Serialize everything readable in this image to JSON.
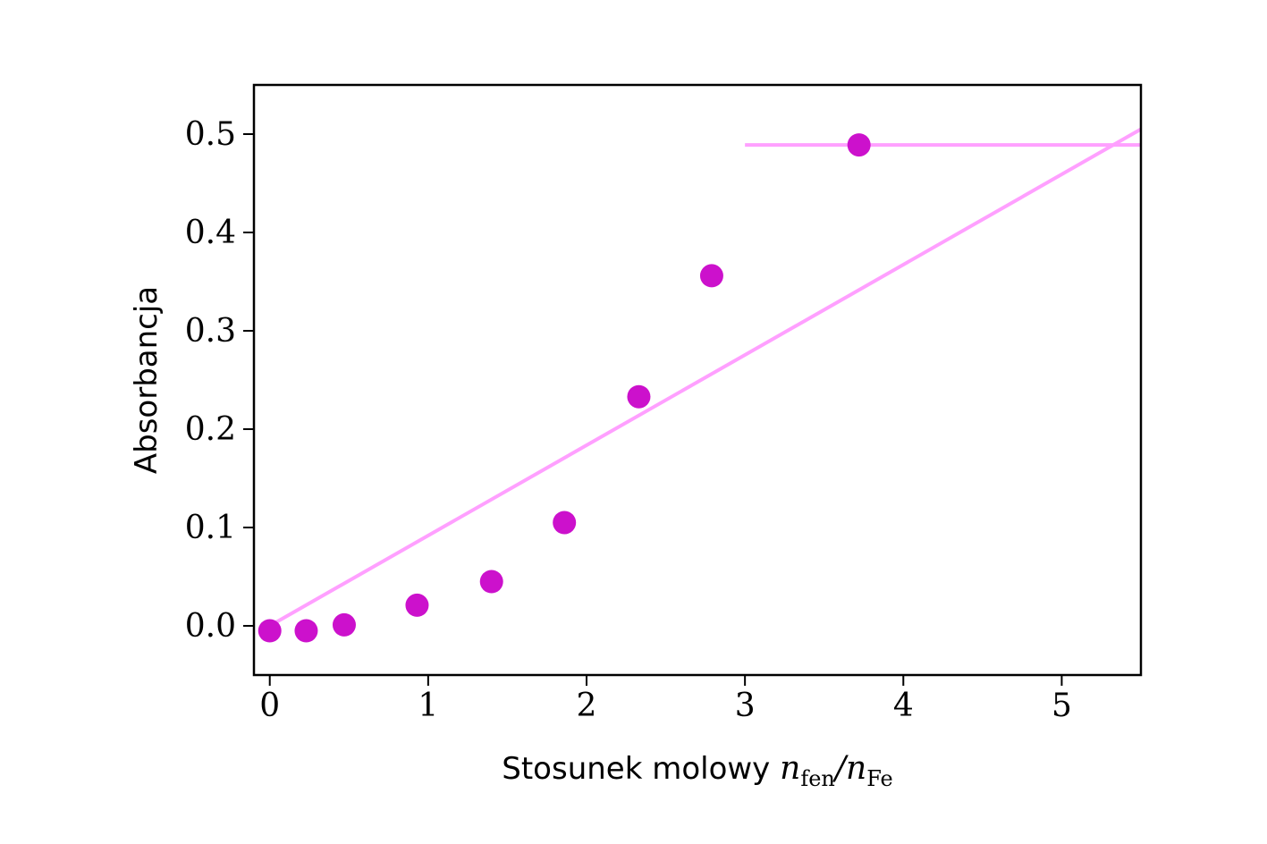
{
  "chart_data": {
    "type": "scatter",
    "xlabel_text": "Stosunek molowy ",
    "xlabel_math": {
      "n1": "n",
      "sub1": "fen",
      "slash": "/",
      "n2": "n",
      "sub2": "Fe"
    },
    "ylabel": "Absorbancja",
    "xlim": [
      -0.1,
      5.5
    ],
    "ylim": [
      -0.05,
      0.55
    ],
    "xticks": [
      0,
      1,
      2,
      3,
      4,
      5
    ],
    "xtick_labels": [
      "0",
      "1",
      "2",
      "3",
      "4",
      "5"
    ],
    "yticks": [
      0.0,
      0.1,
      0.2,
      0.3,
      0.4,
      0.5
    ],
    "ytick_labels": [
      "0.0",
      "0.1",
      "0.2",
      "0.3",
      "0.4",
      "0.5"
    ],
    "grid": false,
    "series": [
      {
        "kind": "points",
        "color": "#cc11cc",
        "x": [
          0.0,
          0.23,
          0.47,
          0.93,
          1.4,
          1.86,
          2.33,
          2.79,
          3.72
        ],
        "y": [
          -0.005,
          -0.005,
          0.001,
          0.021,
          0.045,
          0.105,
          0.233,
          0.356,
          0.489
        ]
      },
      {
        "kind": "line",
        "color": "#ffa0ff",
        "x": [
          0.0,
          5.5
        ],
        "y": [
          0.0,
          0.505
        ]
      },
      {
        "kind": "line",
        "color": "#ffa0ff",
        "x": [
          3.0,
          5.5
        ],
        "y": [
          0.489,
          0.489
        ]
      }
    ]
  }
}
